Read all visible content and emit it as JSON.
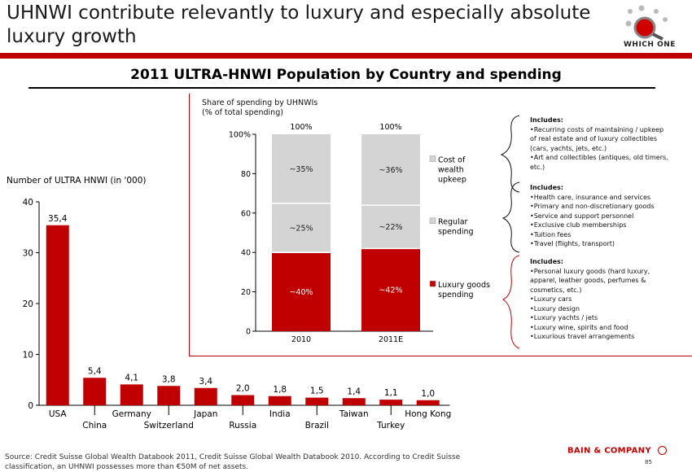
{
  "header": {
    "title": "UHNWI contribute relevantly to luxury and especially absolute luxury growth"
  },
  "logo": {
    "text": "WHICH ONE",
    "icon": "magnifier-with-dots-icon"
  },
  "subtitle": "2011 ULTRA-HNWI Population by Country and spending",
  "left_chart": {
    "axis_label": "Number of ULTRA HNWI (in '000)"
  },
  "right_chart": {
    "share_label_1": "Share of spending by UHNWIs",
    "share_label_2": "(% of total spending)"
  },
  "includes": [
    {
      "heading": "Includes:",
      "lines": [
        "•Recurring costs of maintaining / upkeep",
        "of real estate and of luxury collectibles",
        "(cars, yachts, jets, etc.)",
        "•Art and collectibles (antiques, old timers,",
        "etc.)"
      ]
    },
    {
      "heading": "Includes:",
      "lines": [
        "•Health care, insurance and services",
        "•Primary and non-discretionary goods",
        "•Service and support personnel",
        "•Exclusive club memberships",
        "•Tuition fees",
        "•Travel (flights, transport)"
      ]
    },
    {
      "heading": "Includes:",
      "lines": [
        "•Personal luxury goods (hard luxury,",
        "apparel, leather goods, perfumes &",
        "cosmetics, etc.)",
        "•Luxury cars",
        "•Luxury design",
        "•Luxury yachts / jets",
        "•Luxury wine, spirits and food",
        "•Luxurious travel arrangements"
      ]
    }
  ],
  "footer": {
    "source_1": "Source: Credit Suisse Global Wealth Databook 2011, Credit Suisse Global Wealth Databook 2010. According to Credit Suisse",
    "source_2": "classification, an UHNWI possesses more than €50M of net assets.",
    "brand": "BAIN & COMPANY",
    "page": "85"
  },
  "colors": {
    "red": "#c00000",
    "gray": "#d4d4d4"
  },
  "chart_data": [
    {
      "type": "bar",
      "ylabel": "Number of ULTRA HNWI (in '000)",
      "ylim": [
        0,
        40
      ],
      "yticks": [
        0,
        10,
        20,
        30,
        40
      ],
      "categories": [
        "USA",
        "China",
        "Germany",
        "Switzerland",
        "Japan",
        "Russia",
        "India",
        "Brazil",
        "Taiwan",
        "Turkey",
        "Hong Kong"
      ],
      "values": [
        35.4,
        5.4,
        4.1,
        3.8,
        3.4,
        2.0,
        1.8,
        1.5,
        1.4,
        1.1,
        1.0
      ],
      "value_labels": [
        "35,4",
        "5,4",
        "4,1",
        "3,8",
        "3,4",
        "2,0",
        "1,8",
        "1,5",
        "1,4",
        "1,1",
        "1,0"
      ],
      "color": "#c00000"
    },
    {
      "type": "bar",
      "stacked": true,
      "categories": [
        "2010",
        "2011E"
      ],
      "ylim": [
        0,
        100
      ],
      "yticks": [
        "0",
        "20",
        "40",
        "60",
        "80",
        "100%"
      ],
      "totals": [
        "100%",
        "100%"
      ],
      "series": [
        {
          "name": "Luxury goods spending",
          "values": [
            40,
            42
          ],
          "labels": [
            "~40%",
            "~42%"
          ],
          "color": "#c00000"
        },
        {
          "name": "Regular spending",
          "values": [
            25,
            22
          ],
          "labels": [
            "~25%",
            "~22%"
          ],
          "color": "#d4d4d4"
        },
        {
          "name": "Cost of wealth upkeep",
          "values": [
            35,
            36
          ],
          "labels": [
            "~35%",
            "~36%"
          ],
          "color": "#d4d4d4"
        }
      ],
      "legend_lines": [
        [
          "Luxury goods",
          "spending"
        ],
        [
          "Regular",
          "spending"
        ],
        [
          "Cost of",
          "wealth",
          "upkeep"
        ]
      ]
    }
  ]
}
